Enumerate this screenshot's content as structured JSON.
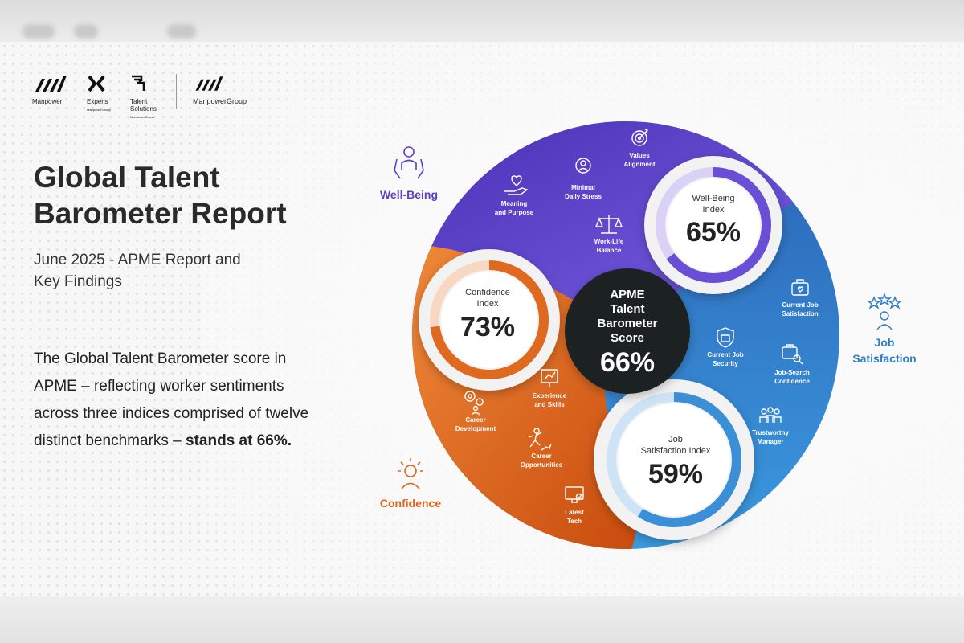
{
  "header": {
    "logos": [
      {
        "name": "Manpower"
      },
      {
        "name": "Experis",
        "sub": "ManpowerGroup"
      },
      {
        "name": "Talent Solutions",
        "line1": "Talent",
        "line2": "Solutions",
        "sub": "ManpowerGroup"
      },
      {
        "name": "ManpowerGroup"
      }
    ]
  },
  "report": {
    "title_line1": "Global Talent",
    "title_line2": "Barometer Report",
    "subtitle_line1": "June 2025 - APME Report and",
    "subtitle_line2": "Key Findings",
    "description": "The Global Talent Barometer score in APME – reflecting worker sentiments across three indices comprised of twelve distinct benchmarks –",
    "description_emphasis": "stands at 66%."
  },
  "diagram": {
    "center": {
      "line1": "APME",
      "line2": "Talent",
      "line3": "Barometer",
      "line4": "Score",
      "value": "66%",
      "fraction": 0.66,
      "color": "#1f2124"
    },
    "segments": [
      {
        "key": "wellbeing",
        "label": "Well-Being",
        "color": "#5b3fc7",
        "index_line1": "Well-Being",
        "index_line2": "Index",
        "index_value": "65%",
        "fraction": 0.65,
        "benchmarks": [
          {
            "line1": "Values",
            "line2": "Alignment",
            "icon": "target-icon"
          },
          {
            "line1": "Minimal",
            "line2": "Daily Stress",
            "icon": "calm-person-icon"
          },
          {
            "line1": "Meaning",
            "line2": "and Purpose",
            "icon": "heart-hand-icon"
          },
          {
            "line1": "Work-Life",
            "line2": "Balance",
            "icon": "scale-icon"
          }
        ]
      },
      {
        "key": "jobsatisfaction",
        "label_line1": "Job",
        "label_line2": "Satisfaction",
        "color": "#2f7fc4",
        "index_line1": "Job",
        "index_line2": "Satisfaction Index",
        "index_value": "59%",
        "fraction": 0.59,
        "benchmarks": [
          {
            "line1": "Current Job",
            "line2": "Satisfaction",
            "icon": "briefcase-heart-icon"
          },
          {
            "line1": "Current Job",
            "line2": "Security",
            "icon": "shield-icon"
          },
          {
            "line1": "Job-Search",
            "line2": "Confidence",
            "icon": "briefcase-search-icon"
          },
          {
            "line1": "Trustworthy",
            "line2": "Manager",
            "icon": "team-icon"
          }
        ]
      },
      {
        "key": "confidence",
        "label": "Confidence",
        "color": "#e0641a",
        "index_line1": "Confidence",
        "index_line2": "Index",
        "index_value": "73%",
        "fraction": 0.73,
        "benchmarks": [
          {
            "line1": "Experience",
            "line2": "and Skills",
            "icon": "chart-board-icon"
          },
          {
            "line1": "Career",
            "line2": "Development",
            "icon": "gears-person-icon"
          },
          {
            "line1": "Career",
            "line2": "Opportunities",
            "icon": "climb-icon"
          },
          {
            "line1": "Latest",
            "line2": "Tech",
            "icon": "monitor-icon"
          }
        ]
      }
    ]
  }
}
